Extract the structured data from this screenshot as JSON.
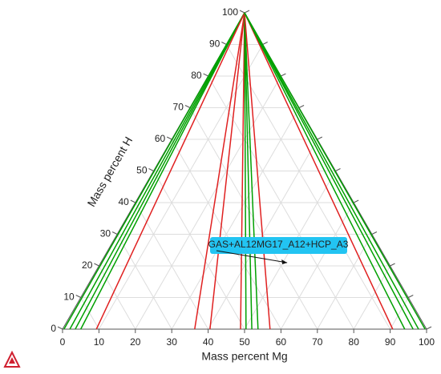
{
  "chart_data": {
    "type": "ternary",
    "xlabel": "Mass percent Mg",
    "ylabel": "Mass percent H",
    "xlim": [
      0,
      100
    ],
    "ylim": [
      0,
      100
    ],
    "xticks": [
      0,
      10,
      20,
      30,
      40,
      50,
      60,
      70,
      80,
      90,
      100
    ],
    "yticks": [
      0,
      10,
      20,
      30,
      40,
      50,
      60,
      70,
      80,
      90,
      100
    ],
    "grid": true,
    "series": [
      {
        "color": "#00a000",
        "x": [
          0,
          0.4
        ],
        "values": [
          100,
          0
        ]
      },
      {
        "color": "#00a000",
        "x": [
          0,
          2
        ],
        "values": [
          100,
          0
        ]
      },
      {
        "color": "#00a000",
        "x": [
          0,
          3.5
        ],
        "values": [
          100,
          0
        ]
      },
      {
        "color": "#00a000",
        "x": [
          0,
          5
        ],
        "values": [
          100,
          0
        ]
      },
      {
        "color": "#e02020",
        "x": [
          0,
          9.3
        ],
        "values": [
          100,
          0
        ]
      },
      {
        "color": "#e02020",
        "x": [
          0,
          36.3
        ],
        "values": [
          100,
          0
        ]
      },
      {
        "color": "#e02020",
        "x": [
          0,
          40.5
        ],
        "values": [
          100,
          0
        ]
      },
      {
        "color": "#e02020",
        "x": [
          0,
          48.9
        ],
        "values": [
          100,
          0
        ]
      },
      {
        "color": "#00a000",
        "x": [
          0,
          50.4
        ],
        "values": [
          100,
          0
        ]
      },
      {
        "color": "#00a000",
        "x": [
          0,
          52
        ],
        "values": [
          100,
          0
        ]
      },
      {
        "color": "#00a000",
        "x": [
          0,
          53.7
        ],
        "values": [
          100,
          0
        ]
      },
      {
        "color": "#e02020",
        "x": [
          0,
          57
        ],
        "values": [
          100,
          0
        ]
      },
      {
        "color": "#e02020",
        "x": [
          0,
          90.7
        ],
        "values": [
          100,
          0
        ]
      },
      {
        "color": "#00a000",
        "x": [
          0,
          94
        ],
        "values": [
          100,
          0
        ]
      },
      {
        "color": "#00a000",
        "x": [
          0,
          96.3
        ],
        "values": [
          100,
          0
        ]
      },
      {
        "color": "#00a000",
        "x": [
          0,
          97.8
        ],
        "values": [
          100,
          0
        ]
      },
      {
        "color": "#00a000",
        "x": [
          0,
          99.6
        ],
        "values": [
          100,
          0
        ]
      }
    ],
    "annotation": {
      "text": "GAS+AL12MG17_A12+HCP_A3",
      "x": 51.2,
      "y": 21
    }
  }
}
